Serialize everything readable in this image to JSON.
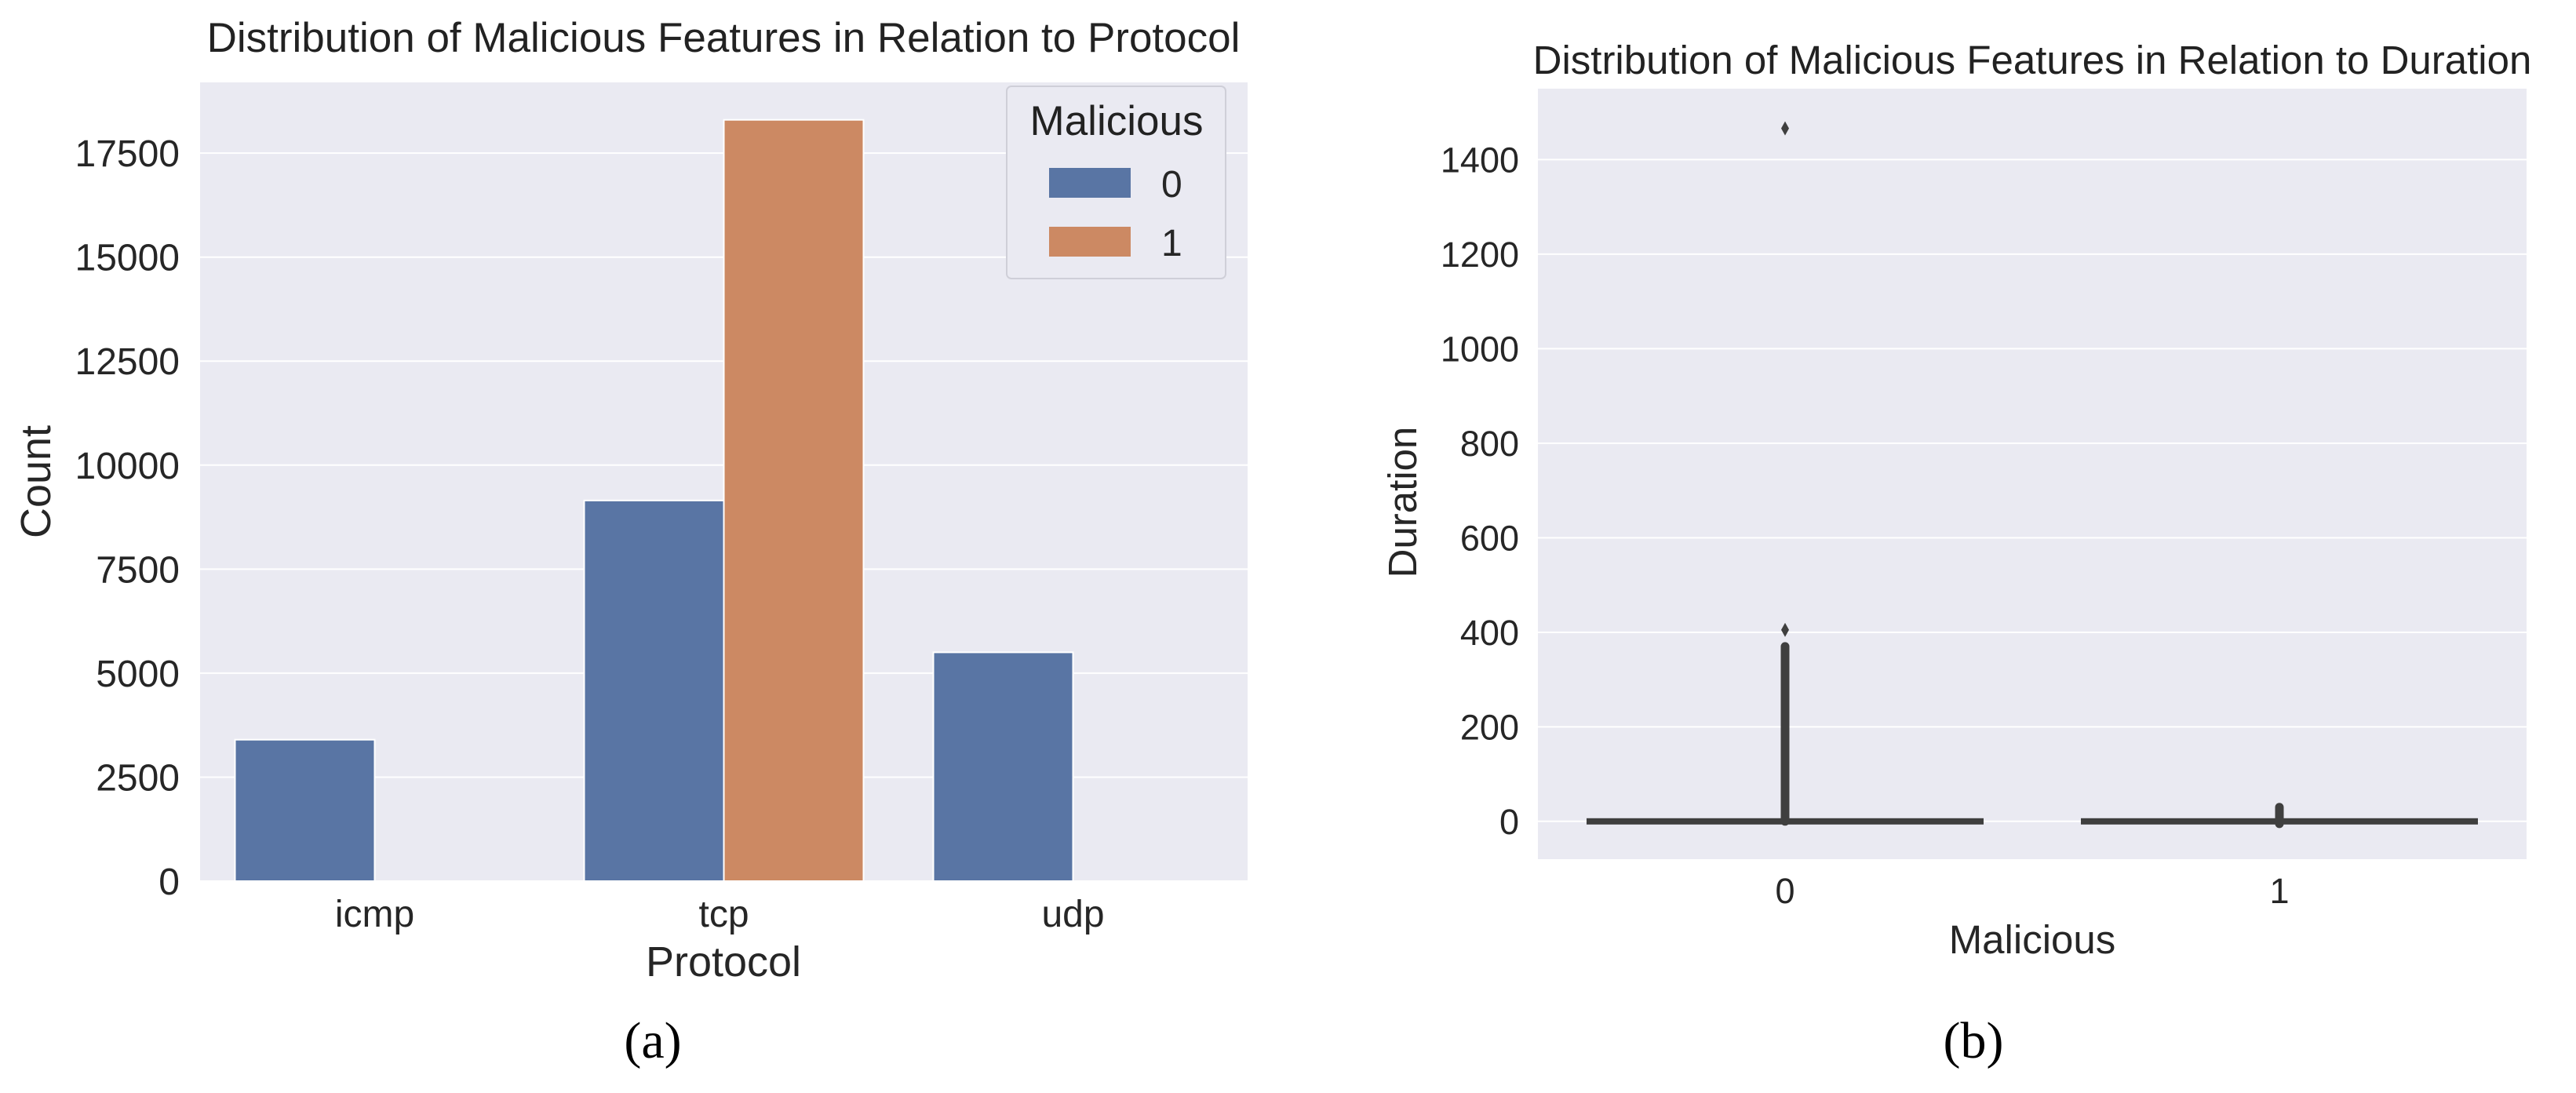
{
  "colors": {
    "plot_background": "#eaeaf2",
    "gridline": "#ffffff",
    "series_0": "#5975a4",
    "series_1": "#cc8963",
    "box_line": "#3f3f3f"
  },
  "captions": [
    "(a)",
    "(b)"
  ],
  "chart_data": [
    {
      "type": "bar",
      "title": "Distribution of Malicious Features in Relation to Protocol",
      "xlabel": "Protocol",
      "ylabel": "Count",
      "categories": [
        "icmp",
        "tcp",
        "udp"
      ],
      "series": [
        {
          "name": "0",
          "values": [
            3400,
            9150,
            5500
          ]
        },
        {
          "name": "1",
          "values": [
            0,
            18300,
            0
          ]
        }
      ],
      "ylim": [
        0,
        19200
      ],
      "yticks": [
        0,
        2500,
        5000,
        7500,
        10000,
        12500,
        15000,
        17500
      ],
      "ytick_labels": [
        "0",
        "2500",
        "5000",
        "7500",
        "10000",
        "12500",
        "15000",
        "17500"
      ],
      "grid": true,
      "legend": {
        "title": "Malicious",
        "entries": [
          "0",
          "1"
        ],
        "placement": "top-right"
      }
    },
    {
      "type": "box",
      "title": "Distribution of Malicious Features in Relation to Duration",
      "xlabel": "Malicious",
      "ylabel": "Duration",
      "categories": [
        "0",
        "1"
      ],
      "boxes": [
        {
          "category": "0",
          "whisker_low": 0,
          "q1": 0,
          "median": 0,
          "q3": 0,
          "whisker_high": 0,
          "outlier_range": [
            0,
            370
          ],
          "outliers": [
            405,
            1466
          ]
        },
        {
          "category": "1",
          "whisker_low": 0,
          "q1": 0,
          "median": 0,
          "q3": 0,
          "whisker_high": 0,
          "outlier_range": [
            -5,
            30
          ],
          "outliers": []
        }
      ],
      "ylim": [
        -80,
        1550
      ],
      "yticks": [
        0,
        200,
        400,
        600,
        800,
        1000,
        1200,
        1400
      ],
      "ytick_labels": [
        "0",
        "200",
        "400",
        "600",
        "800",
        "1000",
        "1200",
        "1400"
      ],
      "grid": true
    }
  ]
}
